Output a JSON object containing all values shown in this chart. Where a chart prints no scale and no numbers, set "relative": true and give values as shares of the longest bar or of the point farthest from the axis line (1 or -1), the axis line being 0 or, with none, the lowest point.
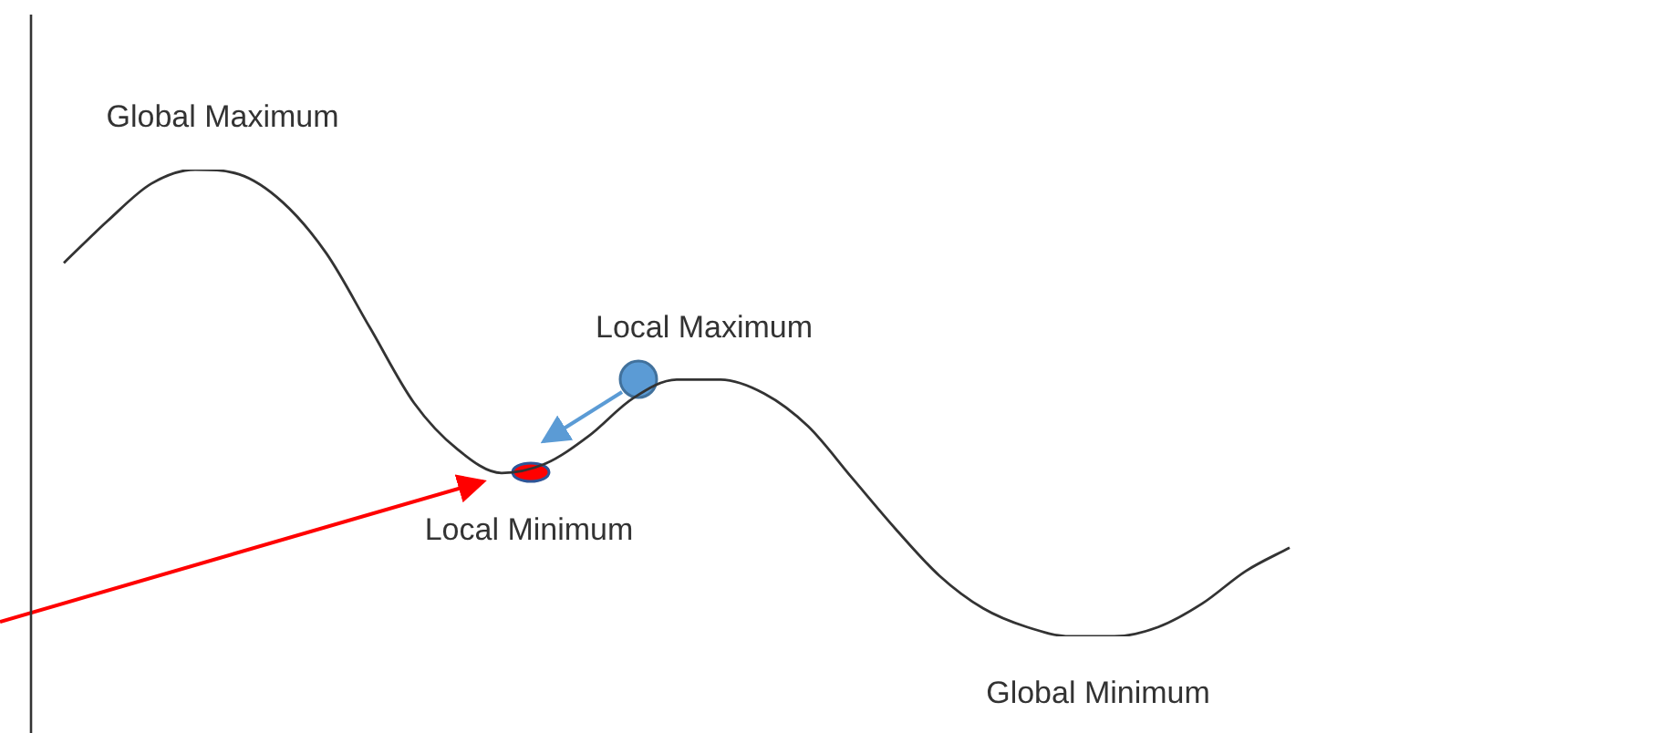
{
  "chart_data": {
    "type": "line",
    "relative": true,
    "color": "#333333",
    "marker": "none",
    "legend": false,
    "categories": [
      null,
      null,
      null,
      null,
      null,
      null,
      null,
      null,
      null,
      null,
      null,
      null,
      null,
      null,
      null,
      null,
      null,
      null,
      null,
      null,
      null,
      null,
      null,
      null,
      null,
      null,
      null,
      null,
      null
    ],
    "values": [
      0.8,
      0.89,
      0.97,
      1,
      0.99,
      0.93,
      0.82,
      0.66,
      0.5,
      0.4,
      0.35,
      0.37,
      0.43,
      0.51,
      0.55,
      0.55,
      0.52,
      0.45,
      0.34,
      0.23,
      0.13,
      0.06,
      0.02,
      0,
      0,
      0.02,
      0.07,
      0.14,
      0.19
    ],
    "annotations": [
      {
        "text": "Global Maximum",
        "y": 1
      },
      {
        "text": "Local Maximum",
        "y": 0.55
      },
      {
        "text": "Local Minimum",
        "y": 0.35
      },
      {
        "text": "Global Minimum",
        "y": 0
      }
    ]
  }
}
